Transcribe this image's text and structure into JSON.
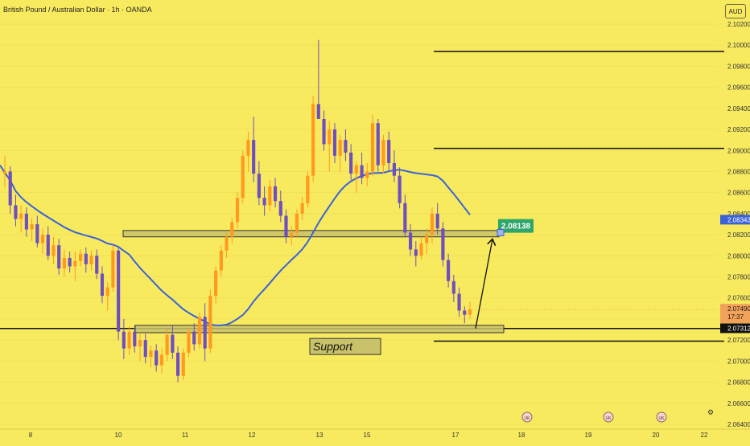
{
  "header": {
    "title": "British Pound / Australian Dollar · 1h · OANDA",
    "currency": "AUD"
  },
  "colors": {
    "background": "#f8ea5f",
    "bull_candle": "#ff9a1f",
    "bear_candle": "#6f4fc0",
    "moving_average": "#3b63d6",
    "target_label": "#2fa66a",
    "zone_fill": "#c9c26a"
  },
  "chart_data": {
    "type": "candlestick",
    "title": "British Pound / Australian Dollar · 1h · OANDA",
    "y_axis": {
      "ticks": [
        "2.10200",
        "2.10000",
        "2.09800",
        "2.09600",
        "2.09400",
        "2.09200",
        "2.09000",
        "2.08800",
        "2.08600",
        "2.08400",
        "2.08200",
        "2.08000",
        "2.07800",
        "2.07600",
        "2.07400",
        "2.07200",
        "2.07000",
        "2.06800",
        "2.06600",
        "2.06400"
      ],
      "range": [
        2.064,
        2.102
      ]
    },
    "x_axis": {
      "ticks": [
        "8",
        "10",
        "11",
        "12",
        "13",
        "15",
        "17",
        "18",
        "19",
        "20",
        "22"
      ]
    },
    "price_labels": {
      "ma_value": "2.08343",
      "last_price": "2.07490",
      "countdown": "17:37",
      "line_price": "2.07312"
    },
    "target_label": "2.08138",
    "support_label": "Support",
    "levels": {
      "upper_line_1": 2.0994,
      "upper_line_2": 2.0902,
      "support_line": 2.0731,
      "lower_line": 2.0719
    },
    "zones": [
      {
        "name": "resistance",
        "from": 2.0818,
        "to": 2.0824
      },
      {
        "name": "support",
        "from": 2.0727,
        "to": 2.0734
      }
    ],
    "event_markers": [
      "18",
      "19",
      "20"
    ],
    "candles": [
      [
        2.0878,
        2.0895,
        2.0865,
        2.088
      ],
      [
        2.088,
        2.0885,
        2.084,
        2.0848
      ],
      [
        2.0848,
        2.0858,
        2.0828,
        2.0835
      ],
      [
        2.0835,
        2.0848,
        2.0822,
        2.084
      ],
      [
        2.084,
        2.0846,
        2.0818,
        2.0825
      ],
      [
        2.0825,
        2.0836,
        2.0814,
        2.083
      ],
      [
        2.083,
        2.0838,
        2.0808,
        2.0812
      ],
      [
        2.0812,
        2.0826,
        2.0802,
        2.082
      ],
      [
        2.082,
        2.0828,
        2.0796,
        2.08
      ],
      [
        2.08,
        2.0818,
        2.0792,
        2.081
      ],
      [
        2.081,
        2.0816,
        2.0782,
        2.0788
      ],
      [
        2.0788,
        2.0806,
        2.078,
        2.0798
      ],
      [
        2.0798,
        2.0804,
        2.0784,
        2.079
      ],
      [
        2.079,
        2.0804,
        2.0776,
        2.0795
      ],
      [
        2.0795,
        2.0806,
        2.079,
        2.0802
      ],
      [
        2.0802,
        2.0808,
        2.0784,
        2.0792
      ],
      [
        2.0792,
        2.0805,
        2.0786,
        2.08
      ],
      [
        2.08,
        2.0806,
        2.0778,
        2.0783
      ],
      [
        2.0783,
        2.079,
        2.0755,
        2.0762
      ],
      [
        2.0762,
        2.0775,
        2.0748,
        2.077
      ],
      [
        2.077,
        2.081,
        2.0766,
        2.0805
      ],
      [
        2.0805,
        2.0808,
        2.072,
        2.0728
      ],
      [
        2.0728,
        2.074,
        2.0702,
        2.0712
      ],
      [
        2.0712,
        2.0733,
        2.0706,
        2.0728
      ],
      [
        2.0728,
        2.0734,
        2.0708,
        2.0714
      ],
      [
        2.0714,
        2.0726,
        2.07,
        2.072
      ],
      [
        2.072,
        2.0726,
        2.0698,
        2.0704
      ],
      [
        2.0704,
        2.0715,
        2.0694,
        2.071
      ],
      [
        2.071,
        2.0716,
        2.069,
        2.0696
      ],
      [
        2.0696,
        2.0712,
        2.0688,
        2.0706
      ],
      [
        2.0706,
        2.073,
        2.07,
        2.0725
      ],
      [
        2.0725,
        2.0734,
        2.0702,
        2.0708
      ],
      [
        2.0708,
        2.0714,
        2.068,
        2.0686
      ],
      [
        2.0686,
        2.0712,
        2.0682,
        2.0708
      ],
      [
        2.0708,
        2.0732,
        2.0704,
        2.0728
      ],
      [
        2.0728,
        2.0736,
        2.071,
        2.0716
      ],
      [
        2.0716,
        2.0746,
        2.0712,
        2.0742
      ],
      [
        2.0742,
        2.0755,
        2.07,
        2.0712
      ],
      [
        2.0712,
        2.0768,
        2.0708,
        2.0762
      ],
      [
        2.0762,
        2.079,
        2.0755,
        2.0786
      ],
      [
        2.0786,
        2.081,
        2.078,
        2.0805
      ],
      [
        2.0805,
        2.0822,
        2.0798,
        2.0818
      ],
      [
        2.0818,
        2.0836,
        2.0812,
        2.0832
      ],
      [
        2.0832,
        2.086,
        2.0826,
        2.0855
      ],
      [
        2.0855,
        2.09,
        2.085,
        2.0895
      ],
      [
        2.0895,
        2.0918,
        2.088,
        2.091
      ],
      [
        2.091,
        2.0932,
        2.087,
        2.0878
      ],
      [
        2.0878,
        2.089,
        2.0848,
        2.0855
      ],
      [
        2.0855,
        2.0866,
        2.0838,
        2.0848
      ],
      [
        2.0848,
        2.0872,
        2.0842,
        2.0866
      ],
      [
        2.0866,
        2.0874,
        2.0846,
        2.0852
      ],
      [
        2.0852,
        2.0862,
        2.0832,
        2.0838
      ],
      [
        2.0838,
        2.0844,
        2.0812,
        2.0818
      ],
      [
        2.0818,
        2.0828,
        2.081,
        2.0822
      ],
      [
        2.0822,
        2.0844,
        2.0818,
        2.084
      ],
      [
        2.084,
        2.0856,
        2.0834,
        2.085
      ],
      [
        2.085,
        2.088,
        2.0846,
        2.0876
      ],
      [
        2.0876,
        2.0952,
        2.087,
        2.0944
      ],
      [
        2.0944,
        2.1005,
        2.093,
        2.093
      ],
      [
        2.093,
        2.0938,
        2.09,
        2.0906
      ],
      [
        2.0906,
        2.0928,
        2.088,
        2.092
      ],
      [
        2.092,
        2.0926,
        2.0888,
        2.0895
      ],
      [
        2.0895,
        2.0915,
        2.088,
        2.091
      ],
      [
        2.091,
        2.092,
        2.089,
        2.0898
      ],
      [
        2.0898,
        2.0906,
        2.0872,
        2.0878
      ],
      [
        2.0878,
        2.089,
        2.086,
        2.0886
      ],
      [
        2.0886,
        2.0898,
        2.0868,
        2.0874
      ],
      [
        2.0874,
        2.0888,
        2.0866,
        2.088
      ],
      [
        2.088,
        2.0934,
        2.0876,
        2.0926
      ],
      [
        2.0926,
        2.093,
        2.088,
        2.0886
      ],
      [
        2.0886,
        2.0915,
        2.0878,
        2.091
      ],
      [
        2.091,
        2.0918,
        2.088,
        2.0888
      ],
      [
        2.0888,
        2.09,
        2.087,
        2.0876
      ],
      [
        2.0876,
        2.0884,
        2.0845,
        2.085
      ],
      [
        2.085,
        2.0858,
        2.0818,
        2.0822
      ],
      [
        2.0822,
        2.083,
        2.08,
        2.0806
      ],
      [
        2.0806,
        2.0814,
        2.079,
        2.08
      ],
      [
        2.08,
        2.0818,
        2.0796,
        2.0812
      ],
      [
        2.0812,
        2.0826,
        2.0802,
        2.082
      ],
      [
        2.082,
        2.0846,
        2.0812,
        2.084
      ],
      [
        2.084,
        2.085,
        2.082,
        2.0826
      ],
      [
        2.0826,
        2.0832,
        2.079,
        2.0796
      ],
      [
        2.0796,
        2.0802,
        2.077,
        2.0776
      ],
      [
        2.0776,
        2.0782,
        2.0756,
        2.0764
      ],
      [
        2.0764,
        2.077,
        2.0742,
        2.0748
      ],
      [
        2.0748,
        2.0752,
        2.0736,
        2.0744
      ],
      [
        2.0744,
        2.0756,
        2.074,
        2.0749
      ]
    ]
  }
}
